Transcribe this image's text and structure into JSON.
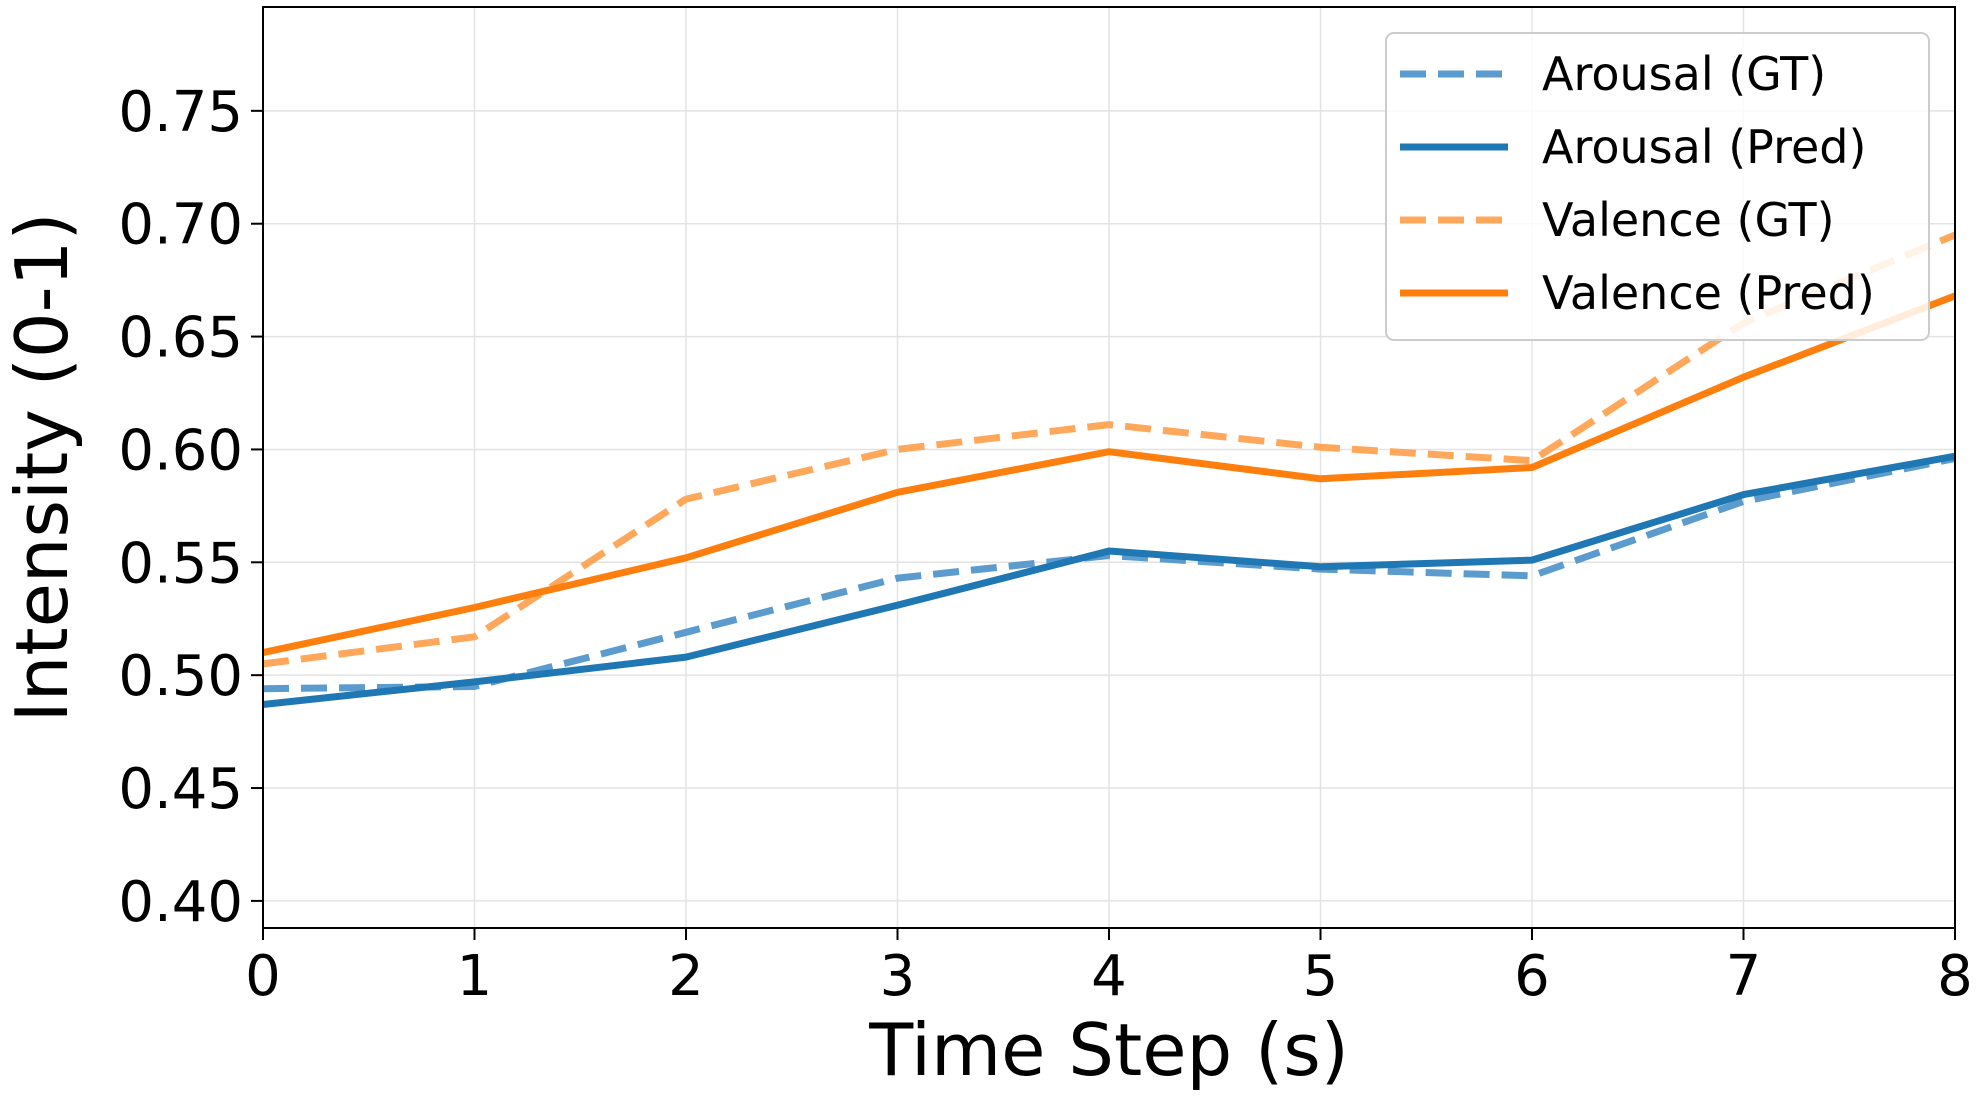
{
  "chart_data": {
    "type": "line",
    "title": "",
    "xlabel": "Time Step (s)",
    "ylabel": "Intensity (0-1)",
    "xlim": [
      0,
      8
    ],
    "ylim": [
      0.388,
      0.796
    ],
    "x": [
      0,
      1,
      2,
      3,
      4,
      5,
      6,
      7,
      8
    ],
    "x_ticks": [
      "0",
      "1",
      "2",
      "3",
      "4",
      "5",
      "6",
      "7",
      "8"
    ],
    "y_ticks": [
      0.4,
      0.45,
      0.5,
      0.55,
      0.6,
      0.65,
      0.7,
      0.75
    ],
    "y_tick_labels": [
      "0.40",
      "0.45",
      "0.50",
      "0.55",
      "0.60",
      "0.65",
      "0.70",
      "0.75"
    ],
    "grid": true,
    "legend_position": "top-right",
    "series": [
      {
        "name": "Arousal (GT)",
        "color": "#5b9bcd",
        "dashed": true,
        "values": [
          0.494,
          0.495,
          0.519,
          0.543,
          0.553,
          0.547,
          0.544,
          0.577,
          0.596
        ]
      },
      {
        "name": "Arousal (Pred)",
        "color": "#1f77b4",
        "dashed": false,
        "values": [
          0.487,
          0.497,
          0.508,
          0.531,
          0.555,
          0.548,
          0.551,
          0.58,
          0.597
        ]
      },
      {
        "name": "Valence (GT)",
        "color": "#ffa85c",
        "dashed": true,
        "values": [
          0.505,
          0.517,
          0.578,
          0.6,
          0.611,
          0.601,
          0.595,
          0.656,
          0.695
        ]
      },
      {
        "name": "Valence (Pred)",
        "color": "#ff7f0e",
        "dashed": false,
        "values": [
          0.51,
          0.53,
          0.552,
          0.581,
          0.599,
          0.587,
          0.592,
          0.632,
          0.668
        ]
      }
    ]
  }
}
